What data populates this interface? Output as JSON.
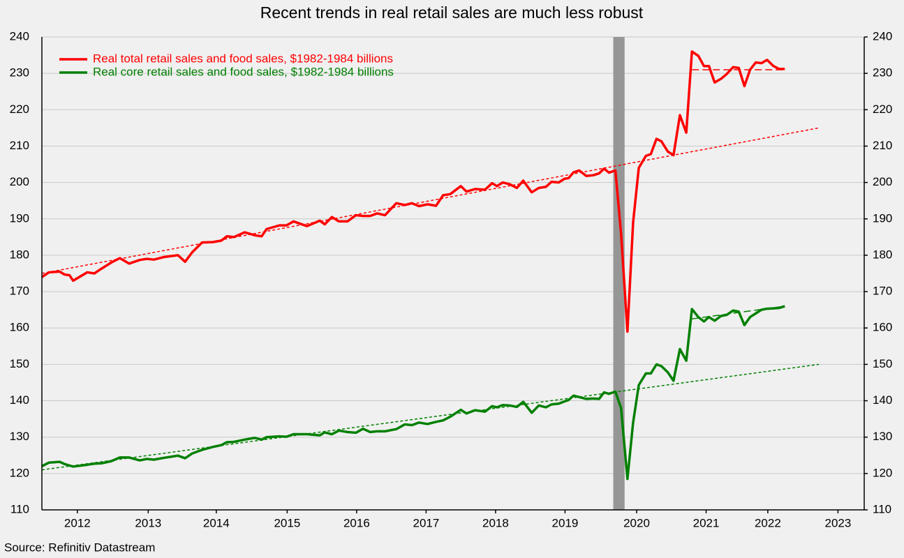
{
  "chart_data": {
    "type": "line",
    "title": "Recent trends in real retail sales are much less robust",
    "source": "Source: Refinitiv Datastream",
    "xlim": [
      2012,
      2023.6
    ],
    "xticks": [
      {
        "value": 2012.5,
        "label": "2012"
      },
      {
        "value": 2013.5,
        "label": "2013"
      },
      {
        "value": 2014.46,
        "label": "2014"
      },
      {
        "value": 2015.46,
        "label": "2015"
      },
      {
        "value": 2016.44,
        "label": "2016"
      },
      {
        "value": 2017.42,
        "label": "2017"
      },
      {
        "value": 2018.4,
        "label": "2018"
      },
      {
        "value": 2019.38,
        "label": "2019"
      },
      {
        "value": 2020.39,
        "label": "2020"
      },
      {
        "value": 2021.37,
        "label": "2021"
      },
      {
        "value": 2022.24,
        "label": "2022"
      },
      {
        "value": 2023.23,
        "label": "2023"
      }
    ],
    "ylim": [
      110,
      240
    ],
    "yticks": [
      110,
      120,
      130,
      140,
      150,
      160,
      170,
      180,
      190,
      200,
      210,
      220,
      230,
      240
    ],
    "y2lim": [
      110,
      240
    ],
    "y2ticks": [
      110,
      120,
      130,
      140,
      150,
      160,
      170,
      180,
      190,
      200,
      210,
      220,
      230,
      240
    ],
    "grid": true,
    "legend": "upper left",
    "x": [
      2012.0,
      2012.1,
      2012.25,
      2012.32,
      2012.39,
      2012.44,
      2012.64,
      2012.74,
      2012.84,
      2012.98,
      2013.1,
      2013.23,
      2013.38,
      2013.48,
      2013.58,
      2013.72,
      2013.92,
      2014.02,
      2014.12,
      2014.26,
      2014.41,
      2014.53,
      2014.61,
      2014.71,
      2014.86,
      2015.0,
      2015.1,
      2015.17,
      2015.35,
      2015.45,
      2015.55,
      2015.74,
      2015.92,
      2015.99,
      2016.09,
      2016.19,
      2016.31,
      2016.43,
      2016.53,
      2016.63,
      2016.73,
      2016.84,
      2017.0,
      2017.12,
      2017.22,
      2017.32,
      2017.44,
      2017.56,
      2017.66,
      2017.76,
      2017.91,
      2017.99,
      2018.11,
      2018.25,
      2018.35,
      2018.42,
      2018.5,
      2018.6,
      2018.7,
      2018.79,
      2018.91,
      2019.01,
      2019.11,
      2019.19,
      2019.29,
      2019.37,
      2019.43,
      2019.5,
      2019.58,
      2019.68,
      2019.78,
      2019.86,
      2019.93,
      2020.0,
      2020.09,
      2020.17,
      2020.26,
      2020.34,
      2020.42,
      2020.52,
      2020.59,
      2020.67,
      2020.74,
      2020.83,
      2020.91,
      2021.0,
      2021.09,
      2021.17,
      2021.26,
      2021.34,
      2021.41,
      2021.49,
      2021.58,
      2021.66,
      2021.75,
      2021.83,
      2021.91,
      2021.99,
      2022.07,
      2022.15,
      2022.23,
      2022.32,
      2022.4,
      2022.48
    ],
    "series": [
      {
        "name": "Real total retail sales and food sales, $1982-1984 billions",
        "color": "#ff0000",
        "values": [
          174,
          175.3,
          175.5,
          174.7,
          174.5,
          173,
          175.3,
          175,
          176.3,
          178,
          179.2,
          177.7,
          178.7,
          179,
          178.8,
          179.5,
          180,
          178.2,
          180.8,
          183.5,
          183.6,
          184,
          185.2,
          185,
          186.3,
          185.5,
          185.2,
          187.2,
          188.2,
          188.2,
          189.3,
          188,
          189.5,
          188.5,
          190.5,
          189.3,
          189.3,
          191,
          190.8,
          190.8,
          191.5,
          191,
          194.3,
          193.8,
          194.3,
          193.5,
          194,
          193.6,
          196.5,
          196.8,
          199,
          197.5,
          198.2,
          198,
          199.8,
          199,
          200,
          199.5,
          198.5,
          200.5,
          197.3,
          198.5,
          198.8,
          200.2,
          200,
          201,
          201.2,
          202.8,
          203.3,
          201.8,
          202,
          202.5,
          203.8,
          202.7,
          203.3,
          186,
          159,
          189,
          204,
          207.3,
          207.8,
          212,
          211.3,
          208.5,
          207.5,
          218.5,
          213.7,
          236,
          234.8,
          232,
          232,
          227.5,
          228.5,
          229.8,
          231.7,
          231.5,
          226.5,
          231,
          233,
          232.8,
          233.7,
          232,
          231.2,
          231.2
        ]
      },
      {
        "name": "Real core retail sales and food sales, $1982-1984 billions",
        "color": "#008000",
        "values": [
          122,
          123,
          123.2,
          122.6,
          122.2,
          121.9,
          122.4,
          122.7,
          122.8,
          123.4,
          124.4,
          124.4,
          123.6,
          124,
          123.8,
          124.3,
          124.9,
          124.2,
          125.5,
          126.5,
          127.3,
          127.8,
          128.6,
          128.7,
          129.3,
          129.8,
          129.3,
          130,
          130.2,
          130.1,
          130.8,
          130.8,
          130.5,
          131.3,
          130.8,
          131.8,
          131.4,
          131.2,
          132.3,
          131.4,
          131.6,
          131.6,
          132.2,
          133.5,
          133.3,
          134,
          133.6,
          134.2,
          134.6,
          135.6,
          137.5,
          136.5,
          137.4,
          137,
          138.5,
          138.2,
          138.8,
          138.7,
          138.3,
          139.7,
          136.7,
          138.7,
          138.2,
          139,
          139.2,
          139.8,
          140.2,
          141.4,
          141,
          140.5,
          140.6,
          140.5,
          142.3,
          141.9,
          142.5,
          138,
          118.5,
          134,
          144.3,
          147.5,
          147.5,
          150,
          149.5,
          147.8,
          145.5,
          154.2,
          151,
          165.2,
          163,
          161.8,
          163,
          162,
          163.3,
          163.6,
          164.8,
          164.5,
          160.8,
          163,
          164,
          165,
          165.3,
          165.4,
          165.5,
          166
        ]
      }
    ],
    "trendlines": [
      {
        "color": "#ff0000",
        "x": [
          2012.0,
          2022.96
        ],
        "values": [
          175,
          215
        ]
      },
      {
        "color": "#008000",
        "x": [
          2012.0,
          2022.96
        ],
        "values": [
          121,
          150
        ]
      },
      {
        "color": "#ff0000",
        "x": [
          2021.17,
          2022.48
        ],
        "values": [
          231,
          231
        ]
      },
      {
        "color": "#008000",
        "x": [
          2021.17,
          2022.48
        ],
        "values": [
          162.5,
          166
        ]
      }
    ],
    "shaded_regions": [
      {
        "x": [
          2020.06,
          2020.22
        ],
        "color": "#969696"
      }
    ]
  }
}
